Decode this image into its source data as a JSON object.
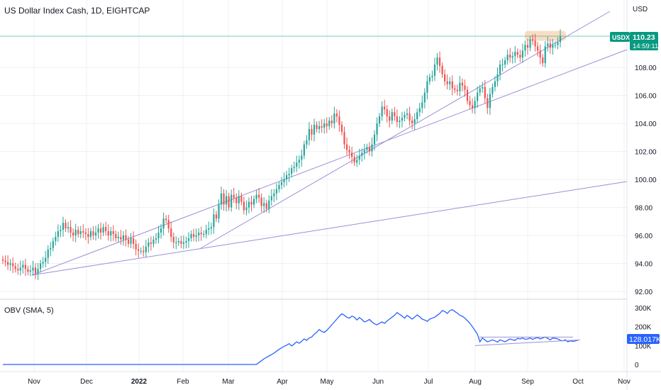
{
  "header": {
    "title": "US Dollar Index Cash, 1D, EIGHTCAP",
    "currency": "USD"
  },
  "obv_header": {
    "label": "OBV (SMA, 5)"
  },
  "price_tag": {
    "symbol": "USDX",
    "price": "110.23",
    "countdown": "14:59:11"
  },
  "obv_tag": {
    "value": "128.017K"
  },
  "colors": {
    "up": "#26a69a",
    "down": "#ef5350",
    "trendline": "#9b8fd6",
    "obv_line": "#2962ff",
    "price_line": "#26a69a",
    "highlight": "#f5c69b",
    "grid": "#eef0f3",
    "obv_tag_bg": "#2962ff",
    "price_tag_bg": "#089981"
  },
  "chart_data": [
    {
      "type": "candlestick",
      "title": "US Dollar Index Cash, 1D, EIGHTCAP",
      "x_ticks": [
        "Nov",
        "Dec",
        "2022",
        "Feb",
        "Mar",
        "Apr",
        "May",
        "Jun",
        "Jul",
        "Aug",
        "Sep",
        "Oct",
        "Nov"
      ],
      "y_ticks": [
        "92.00",
        "94.00",
        "96.00",
        "98.00",
        "100.00",
        "102.00",
        "104.00",
        "106.00",
        "108.00"
      ],
      "ylim": [
        91.5,
        112.5
      ],
      "grid": true,
      "last_price": 110.23,
      "trendline_count": 3,
      "series": [
        {
          "name": "USDX",
          "closes": [
            94.2,
            94.1,
            93.9,
            94.0,
            93.8,
            93.6,
            93.5,
            93.7,
            93.9,
            93.6,
            93.4,
            93.5,
            93.7,
            93.3,
            93.6,
            94.0,
            94.1,
            94.4,
            95.0,
            95.1,
            95.6,
            95.9,
            96.3,
            96.4,
            96.9,
            96.5,
            96.6,
            96.2,
            96.0,
            96.4,
            96.1,
            96.3,
            96.2,
            96.1,
            95.9,
            96.3,
            96.0,
            96.2,
            96.5,
            96.2,
            96.6,
            96.3,
            96.0,
            96.3,
            96.1,
            95.8,
            95.9,
            95.7,
            96.0,
            95.7,
            95.4,
            95.8,
            95.4,
            95.0,
            94.9,
            94.9,
            94.8,
            95.2,
            95.5,
            95.4,
            95.7,
            95.8,
            96.2,
            96.5,
            97.2,
            97.1,
            96.5,
            95.9,
            95.5,
            95.5,
            95.6,
            95.4,
            95.5,
            95.6,
            95.8,
            96.1,
            95.9,
            96.0,
            96.2,
            96.1,
            96.1,
            96.4,
            96.5,
            96.6,
            97.5,
            97.2,
            98.2,
            99.0,
            98.2,
            98.8,
            98.0,
            98.9,
            98.7,
            98.3,
            98.8,
            98.4,
            97.8,
            98.0,
            98.4,
            98.2,
            98.6,
            98.9,
            98.7,
            98.1,
            98.3,
            97.9,
            98.5,
            98.8,
            99.0,
            99.3,
            99.6,
            99.8,
            100.0,
            100.3,
            100.4,
            100.8,
            100.9,
            101.2,
            101.4,
            101.7,
            102.5,
            102.8,
            103.6,
            103.2,
            103.9,
            103.6,
            103.8,
            103.7,
            104.0,
            103.8,
            104.2,
            104.0,
            104.7,
            104.5,
            103.9,
            103.4,
            102.5,
            102.1,
            101.9,
            101.6,
            101.2,
            101.4,
            101.7,
            101.9,
            102.1,
            102.3,
            102.0,
            102.5,
            103.2,
            104.0,
            104.5,
            105.2,
            105.0,
            104.5,
            104.2,
            104.8,
            104.5,
            104.1,
            104.2,
            104.4,
            104.6,
            104.7,
            104.2,
            104.0,
            104.3,
            104.8,
            105.1,
            105.5,
            106.2,
            107.0,
            107.3,
            107.4,
            108.2,
            108.7,
            108.1,
            107.5,
            107.0,
            106.8,
            107.0,
            106.5,
            106.4,
            106.3,
            106.9,
            106.7,
            106.4,
            105.6,
            105.3,
            105.1,
            105.6,
            106.2,
            106.5,
            106.6,
            105.8,
            105.1,
            106.1,
            106.6,
            107.0,
            107.5,
            108.2,
            108.2,
            108.5,
            108.9,
            108.7,
            108.8,
            109.1,
            108.9,
            108.7,
            109.2,
            109.6,
            109.4,
            110.0,
            109.9,
            109.5,
            109.2,
            108.7,
            108.3,
            109.5,
            109.7,
            109.4,
            109.6,
            109.6,
            109.8,
            110.23
          ]
        },
        {
          "name": "Highlighted zone",
          "range": [
            109.9,
            110.6
          ]
        }
      ]
    },
    {
      "type": "line",
      "title": "OBV (SMA, 5)",
      "y_ticks": [
        "0",
        "100K",
        "200K",
        "300K"
      ],
      "ylim": [
        0,
        320
      ],
      "last_value": 128.017,
      "series": [
        {
          "name": "OBV",
          "values": [
            0,
            0,
            0,
            0,
            0,
            0,
            0,
            0,
            0,
            0,
            0,
            0,
            0,
            0,
            0,
            0,
            0,
            0,
            0,
            0,
            0,
            0,
            0,
            0,
            0,
            0,
            0,
            0,
            0,
            0,
            0,
            0,
            0,
            0,
            0,
            0,
            0,
            0,
            0,
            0,
            0,
            0,
            0,
            0,
            0,
            0,
            0,
            0,
            0,
            0,
            0,
            0,
            0,
            0,
            0,
            0,
            0,
            0,
            0,
            0,
            0,
            0,
            0,
            0,
            0,
            0,
            0,
            0,
            0,
            0,
            0,
            0,
            0,
            0,
            0,
            0,
            0,
            0,
            0,
            0,
            0,
            0,
            0,
            0,
            0,
            0,
            0,
            0,
            0,
            0,
            0,
            0,
            0,
            0,
            0,
            0,
            0,
            0,
            0,
            0,
            0,
            0,
            10,
            20,
            30,
            38,
            45,
            52,
            60,
            70,
            80,
            88,
            96,
            102,
            110,
            98,
            108,
            120,
            112,
            123,
            135,
            128,
            140,
            145,
            160,
            170,
            185,
            175,
            170,
            180,
            195,
            210,
            225,
            240,
            255,
            268,
            260,
            250,
            245,
            256,
            250,
            235,
            248,
            238,
            225,
            230,
            238,
            225,
            215,
            210,
            218,
            225,
            218,
            230,
            240,
            250,
            260,
            275,
            265,
            256,
            245,
            260,
            250,
            240,
            250,
            262,
            252,
            240,
            235,
            228,
            240,
            245,
            250,
            260,
            270,
            285,
            280,
            270,
            285,
            290,
            280,
            272,
            260,
            255,
            245,
            232,
            218,
            200,
            180,
            160,
            120,
            140,
            130,
            120,
            125,
            130,
            125,
            118,
            130,
            125,
            120,
            128,
            135,
            130,
            128,
            138,
            135,
            140,
            133,
            135,
            140,
            133,
            138,
            143,
            135,
            140,
            145,
            138,
            130,
            140,
            138,
            135,
            128,
            125,
            130,
            120,
            125,
            122,
            125,
            128
          ]
        }
      ]
    }
  ]
}
